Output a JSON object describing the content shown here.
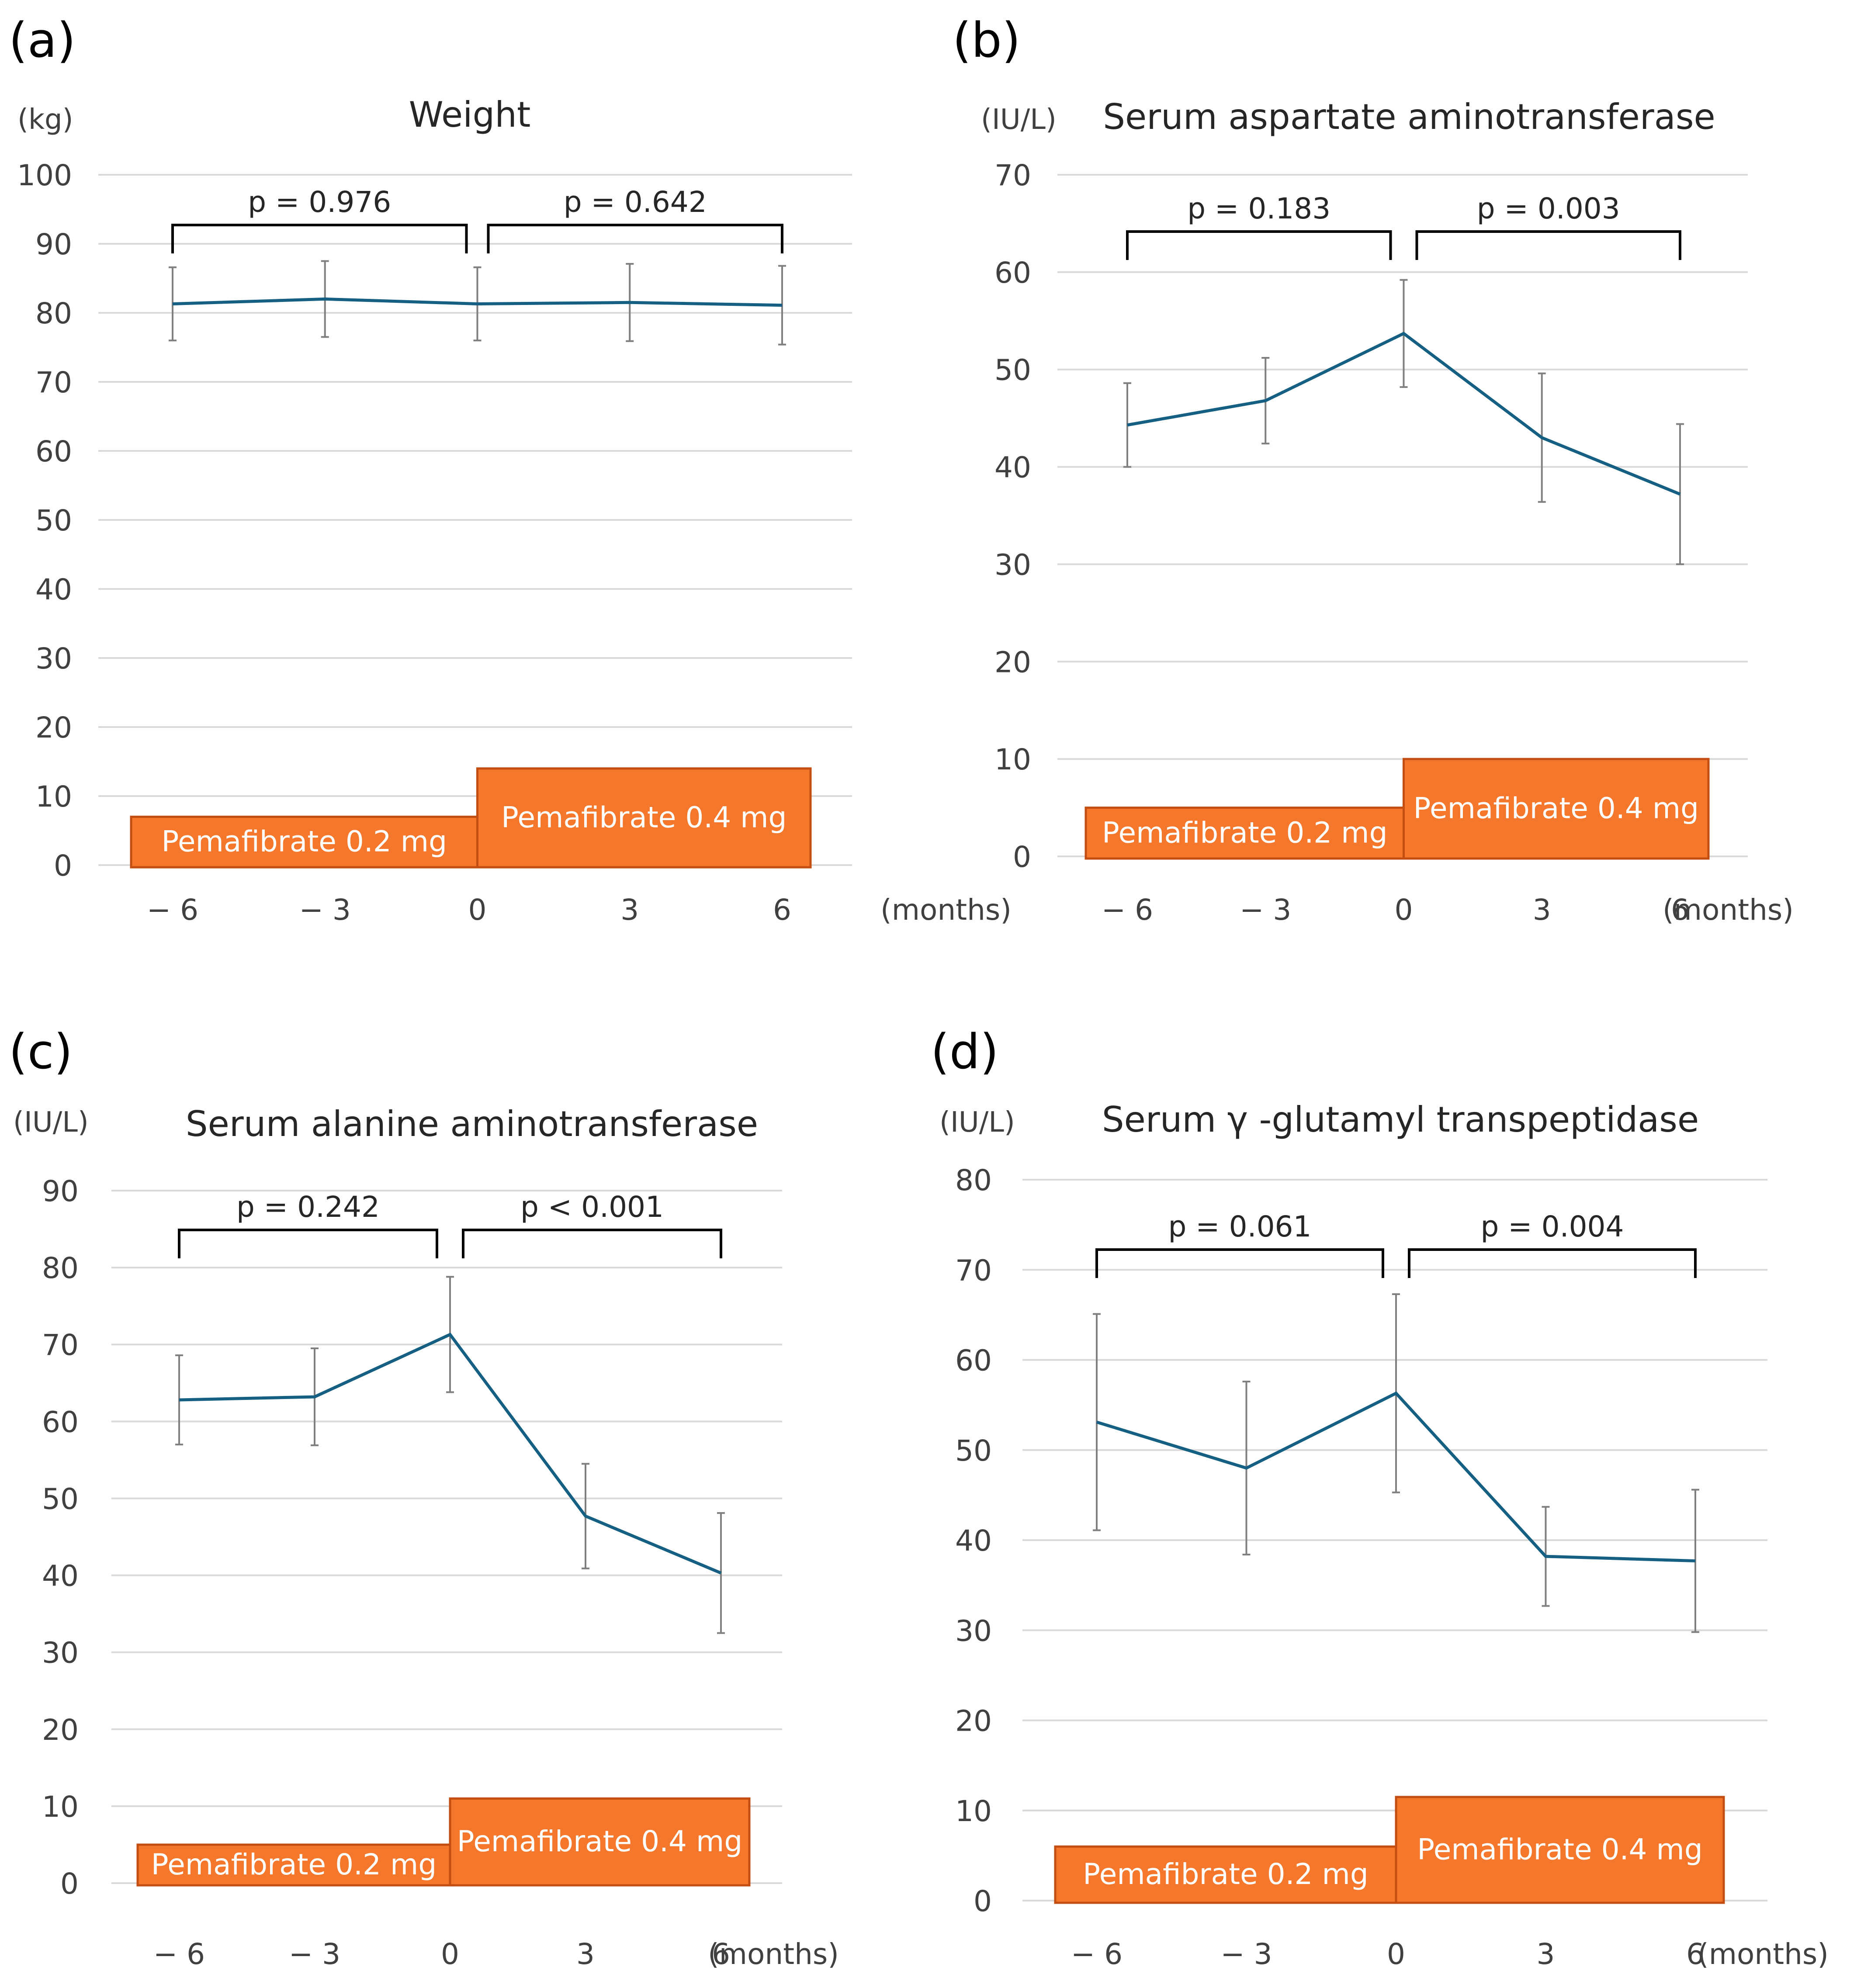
{
  "x_axis_unit": "(months)",
  "chart_data": [
    {
      "panel": "(a)",
      "type": "line",
      "title": "Weight",
      "ylabel": "(kg)",
      "xlabel": "(months)",
      "ylim": [
        0,
        100
      ],
      "yticks": [
        0,
        10,
        20,
        30,
        40,
        50,
        60,
        70,
        80,
        90,
        100
      ],
      "x": [
        -6,
        -3,
        0,
        3,
        6
      ],
      "x_tick_labels": [
        "− 6",
        "− 3",
        "0",
        "3",
        "6"
      ],
      "series": [
        {
          "name": "Weight",
          "values": [
            81.3,
            82.0,
            81.3,
            81.5,
            81.1
          ],
          "error": [
            5.3,
            5.5,
            5.3,
            5.6,
            5.7
          ]
        }
      ],
      "brackets": [
        {
          "from": -6,
          "to": 0,
          "label": "p = 0.976"
        },
        {
          "from": 0,
          "to": 6,
          "label": "p = 0.642"
        }
      ],
      "treatments": [
        {
          "label": "Pemafibrate 0.2 mg",
          "from": -6,
          "to": 0,
          "level": 7
        },
        {
          "label": "Pemafibrate 0.4 mg",
          "from": 0,
          "to": 6,
          "level": 14
        }
      ]
    },
    {
      "panel": "(b)",
      "type": "line",
      "title": "Serum aspartate aminotransferase",
      "ylabel": "(IU/L)",
      "xlabel": "(months)",
      "ylim": [
        0,
        70
      ],
      "yticks": [
        0,
        10,
        20,
        30,
        40,
        50,
        60,
        70
      ],
      "x": [
        -6,
        -3,
        0,
        3,
        6
      ],
      "x_tick_labels": [
        "− 6",
        "− 3",
        "0",
        "3",
        "6"
      ],
      "series": [
        {
          "name": "AST",
          "values": [
            44.3,
            46.8,
            53.7,
            43.0,
            37.2
          ],
          "error": [
            4.3,
            4.4,
            5.5,
            6.6,
            7.2
          ]
        }
      ],
      "brackets": [
        {
          "from": -6,
          "to": 0,
          "label": "p = 0.183"
        },
        {
          "from": 0,
          "to": 6,
          "label": "p = 0.003"
        }
      ],
      "treatments": [
        {
          "label": "Pemafibrate 0.2 mg",
          "from": -6,
          "to": 0,
          "level": 5
        },
        {
          "label": "Pemafibrate 0.4 mg",
          "from": 0,
          "to": 6,
          "level": 10
        }
      ]
    },
    {
      "panel": "(c)",
      "type": "line",
      "title": "Serum alanine aminotransferase",
      "ylabel": "(IU/L)",
      "xlabel": "(months)",
      "ylim": [
        0,
        90
      ],
      "yticks": [
        0,
        10,
        20,
        30,
        40,
        50,
        60,
        70,
        80,
        90
      ],
      "x": [
        -6,
        -3,
        0,
        3,
        6
      ],
      "x_tick_labels": [
        "− 6",
        "− 3",
        "0",
        "3",
        "6"
      ],
      "series": [
        {
          "name": "ALT",
          "values": [
            62.8,
            63.2,
            71.3,
            47.7,
            40.3
          ],
          "error": [
            5.8,
            6.3,
            7.5,
            6.8,
            7.8
          ]
        }
      ],
      "brackets": [
        {
          "from": -6,
          "to": 0,
          "label": "p = 0.242"
        },
        {
          "from": 0,
          "to": 6,
          "label": "p < 0.001"
        }
      ],
      "treatments": [
        {
          "label": "Pemafibrate 0.2 mg",
          "from": -6,
          "to": 0,
          "level": 5
        },
        {
          "label": "Pemafibrate 0.4 mg",
          "from": 0,
          "to": 6,
          "level": 11
        }
      ]
    },
    {
      "panel": "(d)",
      "type": "line",
      "title": "Serum  γ -glutamyl transpeptidase",
      "ylabel": "(IU/L)",
      "xlabel": "(months)",
      "ylim": [
        0,
        80
      ],
      "yticks": [
        0,
        10,
        20,
        30,
        40,
        50,
        60,
        70,
        80
      ],
      "x": [
        -6,
        -3,
        0,
        3,
        6
      ],
      "x_tick_labels": [
        "− 6",
        "− 3",
        "0",
        "3",
        "6"
      ],
      "series": [
        {
          "name": "GGT",
          "values": [
            53.1,
            48.0,
            56.3,
            38.2,
            37.7
          ],
          "error": [
            12.0,
            9.6,
            11.0,
            5.5,
            7.9
          ]
        }
      ],
      "brackets": [
        {
          "from": -6,
          "to": 0,
          "label": "p = 0.061"
        },
        {
          "from": 0,
          "to": 6,
          "label": "p = 0.004"
        }
      ],
      "treatments": [
        {
          "label": "Pemafibrate 0.2 mg",
          "from": -6,
          "to": 0,
          "level": 6
        },
        {
          "label": "Pemafibrate 0.4 mg",
          "from": 0,
          "to": 6,
          "level": 11.5
        }
      ]
    }
  ]
}
